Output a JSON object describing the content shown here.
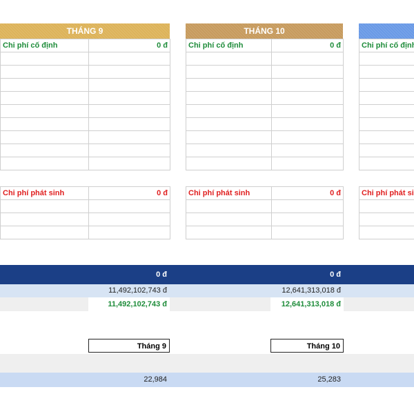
{
  "months": [
    {
      "title": "THÁNG 9",
      "color": "#ddb35a",
      "fixed_label": "Chi phí cố định",
      "fixed_value": "0 đ",
      "var_label": "Chi phí phát sinh",
      "var_value": "0 đ"
    },
    {
      "title": "THÁNG 10",
      "color": "#c79b5e",
      "fixed_label": "Chi phí cố định",
      "fixed_value": "0 đ",
      "var_label": "Chi phí phát sinh",
      "var_value": "0 đ"
    },
    {
      "title": "",
      "color": "#6a9ae6",
      "fixed_label": "Chi phí cố định",
      "fixed_value": "",
      "var_label": "Chi phí phát sinh",
      "var_value": ""
    }
  ],
  "summary": {
    "header_values": [
      "0 đ",
      "0 đ"
    ],
    "row1_values": [
      "11,492,102,743 đ",
      "12,641,313,018 đ"
    ],
    "row2_values": [
      "11,492,102,743 đ",
      "12,641,313,018 đ"
    ]
  },
  "bottom": {
    "labels": [
      "Tháng 9",
      "Tháng 10"
    ],
    "values": [
      "22,984",
      "25,283"
    ]
  },
  "colors": {
    "navy": "#1b3f86",
    "light_blue": "#d7e4f4",
    "light_gray": "#efefef",
    "green": "#1e8c3a",
    "red": "#e02020"
  }
}
